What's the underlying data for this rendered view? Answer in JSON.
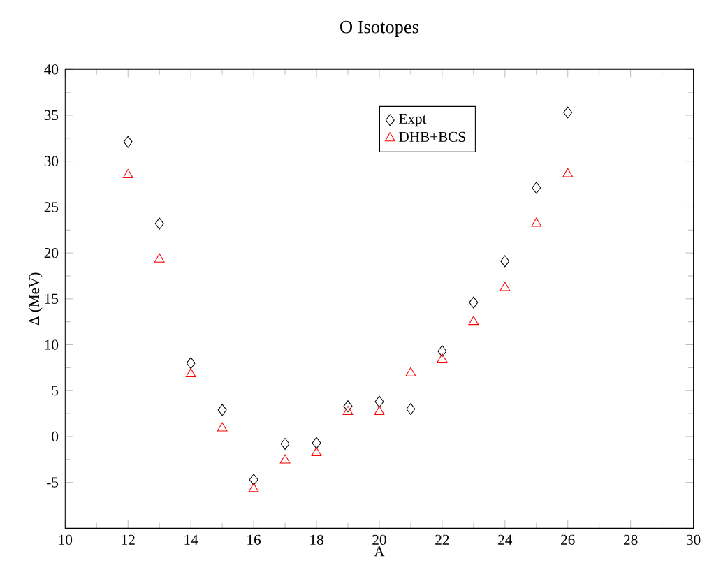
{
  "chart_data": {
    "type": "scatter",
    "title": "O Isotopes",
    "xlabel": "A",
    "ylabel": "Δ (MeV)",
    "x": [
      12,
      13,
      14,
      15,
      16,
      17,
      18,
      19,
      20,
      21,
      22,
      23,
      24,
      25,
      26
    ],
    "series": [
      {
        "name": "Expt",
        "color": "#000000",
        "marker": "diamond",
        "values": [
          32.1,
          23.2,
          8.0,
          2.9,
          -4.7,
          -0.8,
          -0.7,
          3.3,
          3.8,
          3.0,
          9.3,
          14.6,
          19.1,
          27.1,
          35.3
        ]
      },
      {
        "name": "DHB+BCS",
        "color": "#ff0000",
        "marker": "triangle",
        "values": [
          28.5,
          19.3,
          6.8,
          0.9,
          -5.7,
          -2.6,
          -1.8,
          2.7,
          2.7,
          6.9,
          8.4,
          12.5,
          16.2,
          23.2,
          28.6
        ]
      }
    ],
    "xlim": [
      10,
      30
    ],
    "xticks": [
      10,
      12,
      14,
      16,
      18,
      20,
      22,
      24,
      26,
      28,
      30
    ],
    "ylim": [
      -10,
      40
    ],
    "yticks": [
      -5,
      0,
      5,
      10,
      15,
      20,
      25,
      30,
      35,
      40
    ],
    "legend": "top",
    "grid": false
  }
}
